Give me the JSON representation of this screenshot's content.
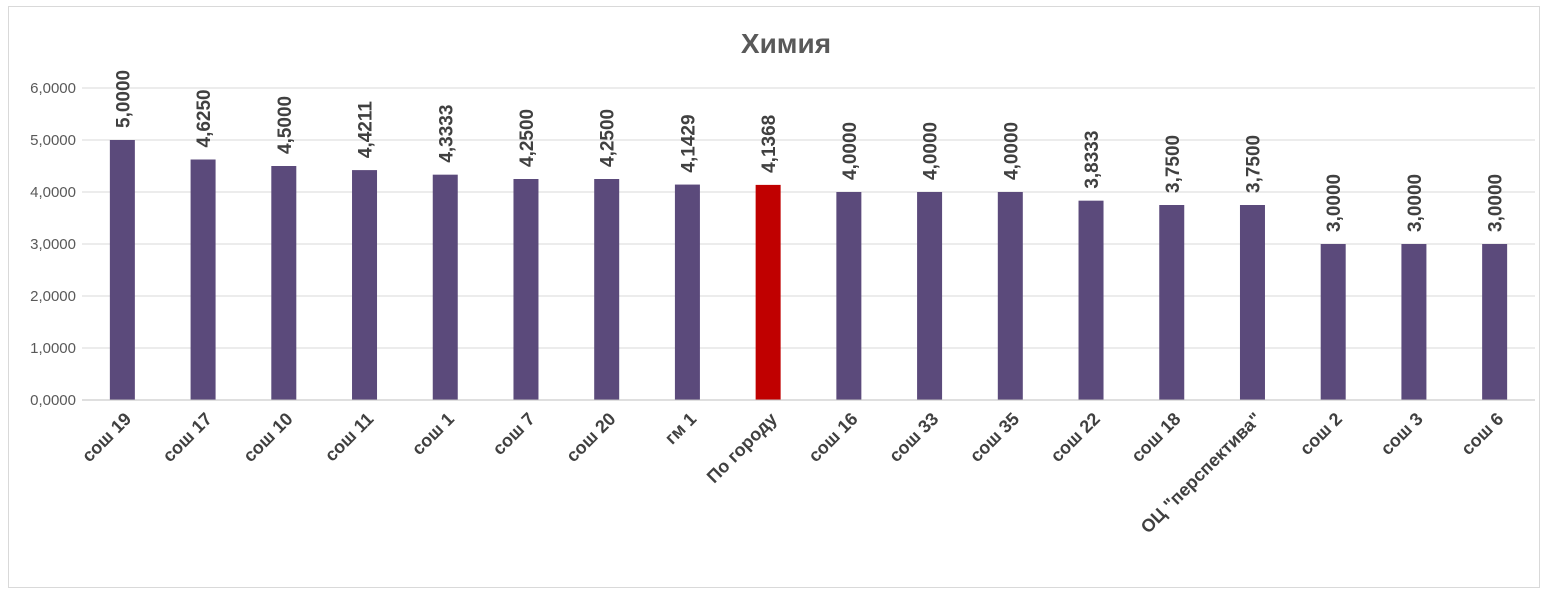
{
  "chart_data": {
    "type": "bar",
    "title": "Химия",
    "xlabel": "",
    "ylabel": "",
    "ylim": [
      0,
      6
    ],
    "yticks": [
      "0,0000",
      "1,0000",
      "2,0000",
      "3,0000",
      "4,0000",
      "5,0000",
      "6,0000"
    ],
    "grid": true,
    "legend": "none",
    "categories": [
      "сош 19",
      "сош 17",
      "сош 10",
      "сош 11",
      "сош 1",
      "сош 7",
      "сош 20",
      "гм 1",
      "По городу",
      "сош 16",
      "сош 33",
      "сош 35",
      "сош 22",
      "сош 18",
      "ОЦ \"перспектива\"",
      "сош 2",
      "сош 3",
      "сош 6"
    ],
    "values": [
      5.0,
      4.625,
      4.5,
      4.4211,
      4.3333,
      4.25,
      4.25,
      4.1429,
      4.1368,
      4.0,
      4.0,
      4.0,
      3.8333,
      3.75,
      3.75,
      3.0,
      3.0,
      3.0
    ],
    "value_labels": [
      "5,0000",
      "4,6250",
      "4,5000",
      "4,4211",
      "4,3333",
      "4,2500",
      "4,2500",
      "4,1429",
      "4,1368",
      "4,0000",
      "4,0000",
      "4,0000",
      "3,8333",
      "3,7500",
      "3,7500",
      "3,0000",
      "3,0000",
      "3,0000"
    ],
    "colors": {
      "bar": "#5b4a7b",
      "highlight": "#c00000",
      "highlight_category": "По городу"
    }
  }
}
